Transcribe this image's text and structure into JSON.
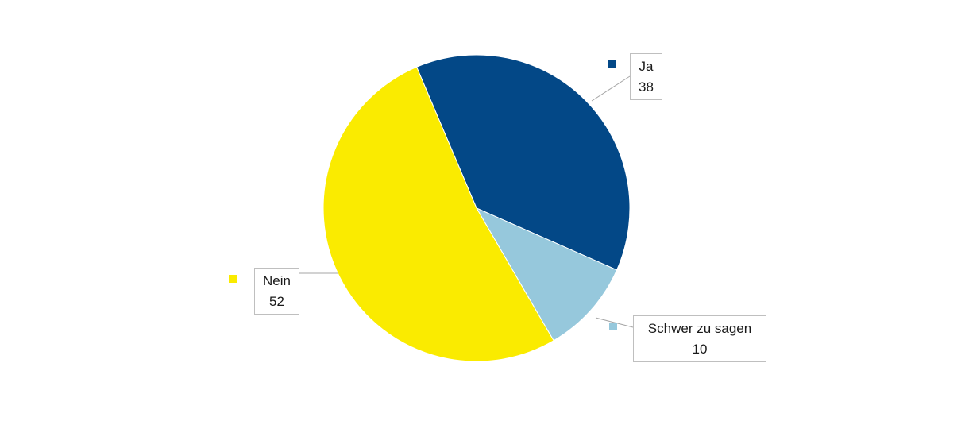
{
  "header": {
    "title": ""
  },
  "chart_data": {
    "type": "pie",
    "title": "",
    "categories": [
      "Ja",
      "Schwer zu sagen",
      "Nein"
    ],
    "values": [
      38,
      10,
      52
    ],
    "value_labels": [
      "38",
      "10",
      "52"
    ],
    "colors": [
      "#034887",
      "#96c8dc",
      "#faeb00"
    ],
    "start_angle_deg": -23,
    "direction": "clockwise",
    "legend": "none",
    "data_labels": "outside-boxed-with-callout"
  }
}
